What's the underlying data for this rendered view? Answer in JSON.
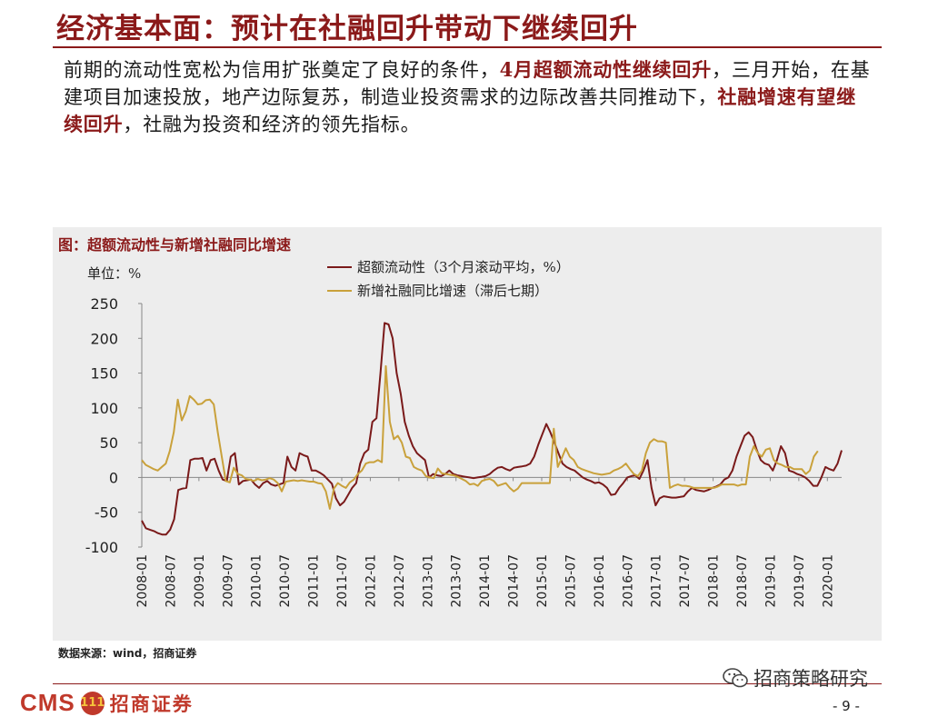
{
  "header": {
    "title": "经济基本面：预计在社融回升带动下继续回升"
  },
  "body_text": {
    "p1": "前期的流动性宽松为信用扩张奠定了良好的条件，",
    "h1": "4月超额流动性继续回升",
    "p2": "，三月开始，在基建项目加速投放，地产边际复苏，制造业投资需求的边际改善共同推动下，",
    "h2": "社融增速有望继续回升",
    "p3": "，社融为投资和经济的领先指标。"
  },
  "chart": {
    "caption": "图：超额流动性与新增社融同比增速",
    "unit": "单位：%",
    "source": "数据来源：wind，招商证券"
  },
  "footer": {
    "logo_cms": "CMS",
    "logo_badge": "111",
    "logo_name": "招商证券",
    "watermark": "招商策略研究",
    "page": "- 9 -"
  },
  "colors": {
    "accent": "#8b1a1a",
    "series1": "#7a1a1a",
    "series2": "#c9a13b",
    "panel": "#ededed"
  },
  "icons": {
    "watermark": "wechat-icon"
  },
  "chart_data": {
    "type": "line",
    "ylim": [
      -100,
      250
    ],
    "yticks": [
      -100,
      -50,
      0,
      50,
      100,
      150,
      200,
      250
    ],
    "xticks": [
      "2008-01",
      "2008-07",
      "2009-01",
      "2009-07",
      "2010-01",
      "2010-07",
      "2011-01",
      "2011-07",
      "2012-01",
      "2012-07",
      "2013-01",
      "2013-07",
      "2014-01",
      "2014-07",
      "2015-01",
      "2015-07",
      "2016-01",
      "2016-07",
      "2017-01",
      "2017-07",
      "2018-01",
      "2018-07",
      "2019-01",
      "2019-07",
      "2020-01"
    ],
    "x_start": "2008-01",
    "x_end": "2020-04",
    "legend_position": "top",
    "grid": false,
    "series": [
      {
        "name": "超额流动性（3个月滚动平均，%）",
        "color": "#7a1a1a",
        "start": "2008-01",
        "values": [
          -62,
          -73,
          -75,
          -77,
          -80,
          -82,
          -82,
          -75,
          -60,
          -18,
          -16,
          -15,
          25,
          27,
          27,
          28,
          10,
          25,
          27,
          10,
          -3,
          -5,
          30,
          35,
          -10,
          -5,
          -4,
          -3,
          -10,
          -15,
          -8,
          -5,
          -10,
          -12,
          -10,
          -8,
          30,
          15,
          10,
          35,
          32,
          30,
          10,
          10,
          7,
          3,
          -3,
          -9,
          -30,
          -40,
          -35,
          -25,
          -15,
          -8,
          20,
          35,
          40,
          80,
          85,
          150,
          222,
          220,
          200,
          150,
          120,
          80,
          60,
          45,
          35,
          30,
          25,
          0,
          5,
          3,
          2,
          5,
          10,
          5,
          3,
          2,
          1,
          0,
          -1,
          0,
          1,
          2,
          5,
          10,
          14,
          15,
          12,
          10,
          14,
          15,
          16,
          17,
          20,
          30,
          47,
          62,
          77,
          65,
          50,
          35,
          20,
          15,
          12,
          10,
          5,
          0,
          -3,
          -5,
          -8,
          -7,
          -10,
          -15,
          -25,
          -24,
          -15,
          -8,
          0,
          2,
          3,
          -2,
          10,
          25,
          -15,
          -40,
          -30,
          -27,
          -28,
          -29,
          -29,
          -28,
          -27,
          -20,
          -15,
          -18,
          -19,
          -20,
          -18,
          -15,
          -13,
          -10,
          -3,
          0,
          10,
          30,
          45,
          60,
          65,
          58,
          40,
          25,
          20,
          18,
          10,
          25,
          45,
          35,
          10,
          8,
          5,
          3,
          0,
          -5,
          -12,
          -12,
          0,
          15,
          12,
          10,
          20,
          39
        ],
        "end": "2020-04"
      },
      {
        "name": "新增社融同比增速（滞后七期）",
        "color": "#c9a13b",
        "start": "2008-01",
        "values": [
          25,
          18,
          15,
          12,
          10,
          15,
          20,
          38,
          65,
          112,
          82,
          95,
          117,
          112,
          105,
          106,
          111,
          112,
          105,
          65,
          30,
          -5,
          -7,
          14,
          5,
          3,
          -2,
          -3,
          -5,
          -2,
          -4,
          -3,
          -1,
          -3,
          -8,
          -20,
          -6,
          -5,
          -4,
          -5,
          -4,
          -5,
          -6,
          -6,
          -8,
          -9,
          -20,
          -45,
          -16,
          -8,
          -12,
          -15,
          -7,
          -3,
          5,
          10,
          20,
          22,
          22,
          25,
          22,
          160,
          80,
          55,
          60,
          50,
          30,
          28,
          15,
          12,
          10,
          2,
          0,
          -1,
          13,
          6,
          5,
          4,
          3,
          1,
          -2,
          -5,
          -10,
          -9,
          -12,
          -5,
          -3,
          -2,
          -5,
          -12,
          -10,
          -8,
          -15,
          -20,
          -16,
          -8,
          -8,
          -8,
          -8,
          -8,
          -8,
          -8,
          -8,
          70,
          15,
          28,
          42,
          30,
          25,
          15,
          12,
          10,
          8,
          6,
          5,
          4,
          5,
          6,
          10,
          12,
          15,
          20,
          12,
          5,
          2,
          10,
          35,
          50,
          55,
          52,
          52,
          50,
          -15,
          -12,
          -10,
          -12,
          -12,
          -13,
          -15,
          -15,
          -15,
          -15,
          -15,
          -15,
          -13,
          -10,
          -10,
          -10,
          -10,
          -12,
          -10,
          -10,
          30,
          45,
          35,
          30,
          40,
          42,
          25,
          20,
          18,
          15,
          15,
          12,
          12,
          12,
          5,
          10,
          30,
          38
        ],
        "end": "2019-11"
      }
    ]
  }
}
